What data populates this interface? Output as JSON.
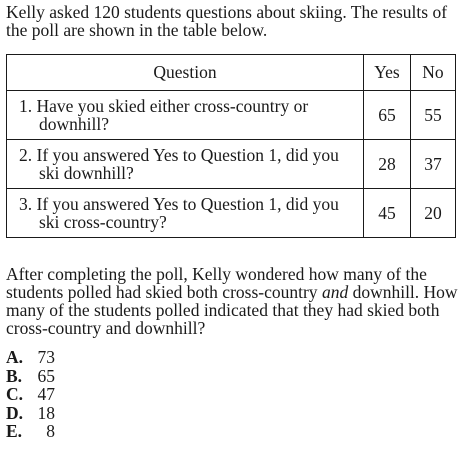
{
  "intro": "Kelly asked 120 students questions about skiing. The results of the poll are shown in the table below.",
  "table": {
    "headers": {
      "question": "Question",
      "yes": "Yes",
      "no": "No"
    },
    "rows": [
      {
        "question": "1. Have you skied either cross-country or downhill?",
        "yes": "65",
        "no": "55"
      },
      {
        "question": "2. If you answered Yes to Question 1, did you ski downhill?",
        "yes": "28",
        "no": "37"
      },
      {
        "question": "3. If you answered Yes to Question 1, did you ski cross-country?",
        "yes": "45",
        "no": "20"
      }
    ]
  },
  "prompt": {
    "before": "After completing the poll, Kelly wondered how many of the students polled had skied both cross-country ",
    "emphasis": "and",
    "after": " downhill. How many of the students polled indicated that they had skied both cross-country and downhill?"
  },
  "choices": [
    {
      "letter": "A.",
      "value": "73"
    },
    {
      "letter": "B.",
      "value": "65"
    },
    {
      "letter": "C.",
      "value": "47"
    },
    {
      "letter": "D.",
      "value": "18"
    },
    {
      "letter": "E.",
      "value": "8"
    }
  ]
}
